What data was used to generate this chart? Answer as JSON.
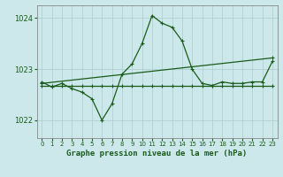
{
  "title": "Graphe pression niveau de la mer (hPa)",
  "bg_color": "#cce8ea",
  "grid_color_major": "#aacccc",
  "grid_color_minor": "#c8e0e0",
  "line_color": "#1a5c1a",
  "xlim": [
    -0.5,
    23.5
  ],
  "ylim": [
    1021.65,
    1024.25
  ],
  "yticks": [
    1022,
    1023,
    1024
  ],
  "xticks": [
    0,
    1,
    2,
    3,
    4,
    5,
    6,
    7,
    8,
    9,
    10,
    11,
    12,
    13,
    14,
    15,
    16,
    17,
    18,
    19,
    20,
    21,
    22,
    23
  ],
  "series1_x": [
    0,
    1,
    2,
    3,
    4,
    5,
    6,
    7,
    8,
    9,
    10,
    11,
    12,
    13,
    14,
    15,
    16,
    17,
    18,
    19,
    20,
    21,
    22,
    23
  ],
  "series1_y": [
    1022.75,
    1022.65,
    1022.72,
    1022.62,
    1022.55,
    1022.42,
    1022.0,
    1022.32,
    1022.9,
    1023.1,
    1023.5,
    1024.05,
    1023.9,
    1023.82,
    1023.55,
    1023.0,
    1022.72,
    1022.68,
    1022.75,
    1022.72,
    1022.72,
    1022.75,
    1022.75,
    1023.15
  ],
  "series2_x": [
    0,
    1,
    2,
    3,
    4,
    5,
    6,
    7,
    8,
    9,
    10,
    11,
    12,
    13,
    14,
    15,
    16,
    17,
    18,
    19,
    20,
    21,
    22,
    23
  ],
  "series2_y": [
    1022.68,
    1022.68,
    1022.68,
    1022.68,
    1022.68,
    1022.68,
    1022.68,
    1022.68,
    1022.68,
    1022.68,
    1022.68,
    1022.68,
    1022.68,
    1022.68,
    1022.68,
    1022.68,
    1022.68,
    1022.68,
    1022.68,
    1022.68,
    1022.68,
    1022.68,
    1022.68,
    1022.68
  ],
  "series3_x": [
    0,
    23
  ],
  "series3_y": [
    1022.72,
    1023.22
  ]
}
